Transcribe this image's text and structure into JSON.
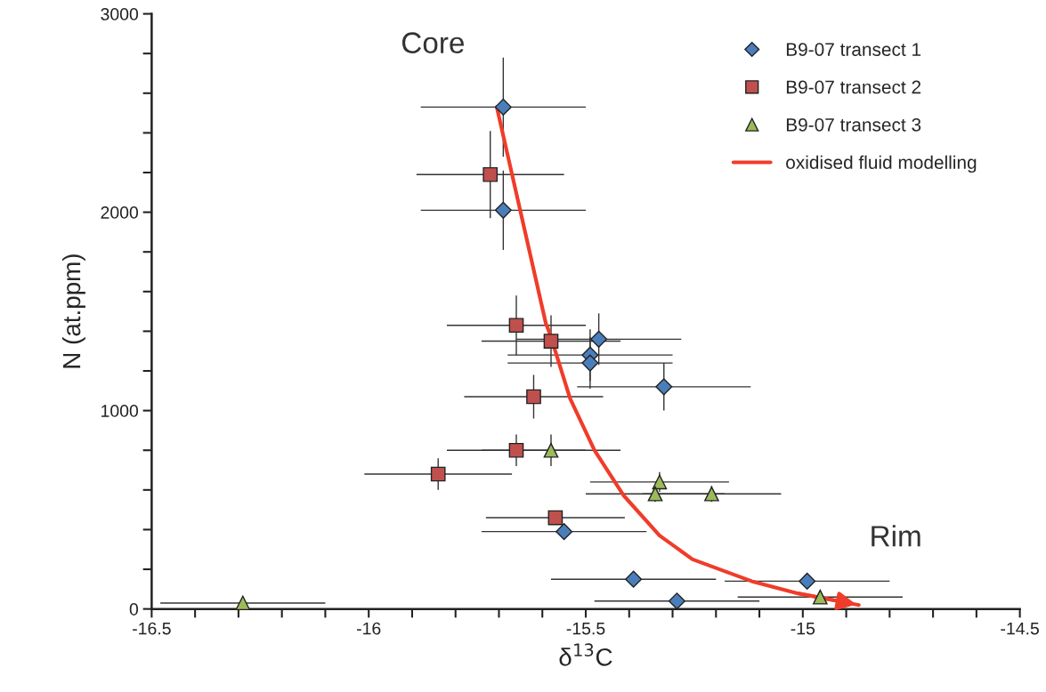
{
  "chart_data": {
    "type": "scatter",
    "xlabel": "δ$^{13}$C",
    "ylabel": "N (at.ppm)",
    "xlim": [
      -16.5,
      -14.5
    ],
    "ylim": [
      0,
      3000
    ],
    "xticks": [
      -16.5,
      {
        "value": -16.4,
        "label": null
      },
      {
        "value": -16.3,
        "label": null
      },
      {
        "value": -16.2,
        "label": null
      },
      {
        "value": -16.1,
        "label": null
      },
      -16,
      {
        "value": -15.9,
        "label": null
      },
      {
        "value": -15.8,
        "label": null
      },
      {
        "value": -15.7,
        "label": null
      },
      {
        "value": -15.6,
        "label": null
      },
      -15.5,
      {
        "value": -15.4,
        "label": null
      },
      {
        "value": -15.3,
        "label": null
      },
      {
        "value": -15.2,
        "label": null
      },
      {
        "value": -15.1,
        "label": null
      },
      -15,
      {
        "value": -14.9,
        "label": null
      },
      {
        "value": -14.8,
        "label": null
      },
      {
        "value": -14.7,
        "label": null
      },
      {
        "value": -14.6,
        "label": null
      },
      -14.5
    ],
    "yticks": [
      0,
      {
        "value": 200,
        "label": null
      },
      {
        "value": 400,
        "label": null
      },
      {
        "value": 600,
        "label": null
      },
      {
        "value": 800,
        "label": null
      },
      1000,
      {
        "value": 1200,
        "label": null
      },
      {
        "value": 1400,
        "label": null
      },
      {
        "value": 1600,
        "label": null
      },
      {
        "value": 1800,
        "label": null
      },
      2000,
      {
        "value": 2200,
        "label": null
      },
      {
        "value": 2400,
        "label": null
      },
      {
        "value": 2600,
        "label": null
      },
      {
        "value": 2800,
        "label": null
      },
      3000
    ],
    "grid": false,
    "legend": "top right",
    "annotations": [
      "Core",
      "Rim"
    ],
    "series": [
      {
        "name": "B9-07 transect 1",
        "color": "#4a7ebb",
        "marker": "diamond",
        "x": [
          -15.69,
          -15.69,
          -15.47,
          -15.49,
          -15.49,
          -15.32,
          -15.55,
          -15.39,
          -14.99,
          -15.29
        ],
        "values": [
          2530,
          2010,
          1360,
          1280,
          1240,
          1120,
          390,
          150,
          140,
          40
        ],
        "xerrors": [
          0.19,
          0.19,
          0.19,
          0.19,
          0.19,
          0.2,
          0.19,
          0.19,
          0.19,
          0.19
        ],
        "errors": [
          250,
          200,
          130,
          130,
          130,
          120,
          null,
          null,
          null,
          null
        ]
      },
      {
        "name": "B9-07 transect 2",
        "color": "#c0504d",
        "marker": "square",
        "x": [
          -15.72,
          -15.66,
          -15.58,
          -15.62,
          -15.66,
          -15.84,
          -15.57
        ],
        "values": [
          2190,
          1430,
          1350,
          1070,
          800,
          680,
          460
        ],
        "xerrors": [
          0.17,
          0.16,
          0.16,
          0.16,
          0.16,
          0.17,
          0.16
        ],
        "errors": [
          220,
          150,
          130,
          110,
          80,
          80,
          30
        ]
      },
      {
        "name": "B9-07 transect 3",
        "color": "#9bbb59",
        "marker": "triangle",
        "x": [
          -15.58,
          -15.33,
          -15.34,
          -15.21,
          -14.96,
          -16.29
        ],
        "values": [
          800,
          640,
          580,
          580,
          60,
          30
        ],
        "xerrors": [
          0.16,
          0.16,
          0.16,
          0.16,
          0.19,
          0.19
        ],
        "errors": [
          80,
          50,
          40,
          40,
          null,
          null
        ]
      },
      {
        "name": "oxidised fluid modelling",
        "type": "line",
        "color": "#f03c2a",
        "marker": "none",
        "x": [
          -15.705,
          -15.592,
          -15.583,
          -15.536,
          -15.48,
          -15.412,
          -15.33,
          -15.254,
          -15.118,
          -15.015,
          -14.871
        ],
        "values": [
          2530,
          1440,
          1390,
          1060,
          800,
          570,
          370,
          250,
          140,
          80,
          20
        ]
      }
    ]
  }
}
